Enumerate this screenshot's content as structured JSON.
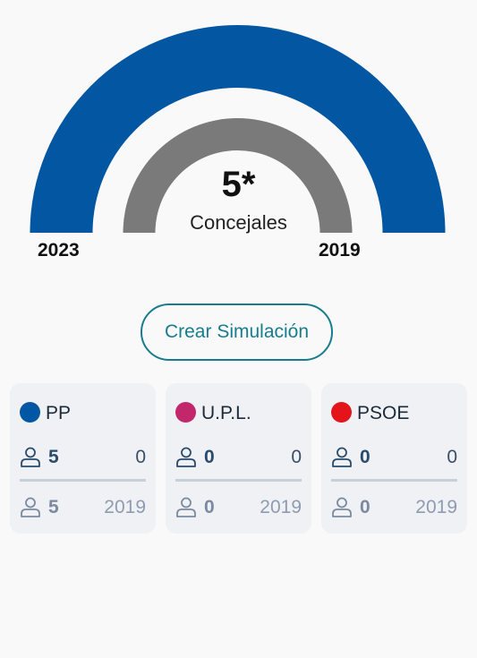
{
  "total": {
    "seats": "5*",
    "label": "Concejales"
  },
  "years": {
    "left": "2023",
    "right": "2019"
  },
  "button": {
    "label": "Crear Simulación"
  },
  "colors": {
    "outer_arc": "#0256a2",
    "inner_arc": "#7a7a7a",
    "button_accent": "#177d8e"
  },
  "parties": [
    {
      "name": "PP",
      "color": "#0257a5",
      "seats": "5",
      "right": "0",
      "prev_seats": "5",
      "prev_year": "2019"
    },
    {
      "name": "U.P.L.",
      "color": "#c2266b",
      "seats": "0",
      "right": "0",
      "prev_seats": "0",
      "prev_year": "2019"
    },
    {
      "name": "PSOE",
      "color": "#e3141a",
      "seats": "0",
      "right": "0",
      "prev_seats": "0",
      "prev_year": "2019"
    }
  ]
}
